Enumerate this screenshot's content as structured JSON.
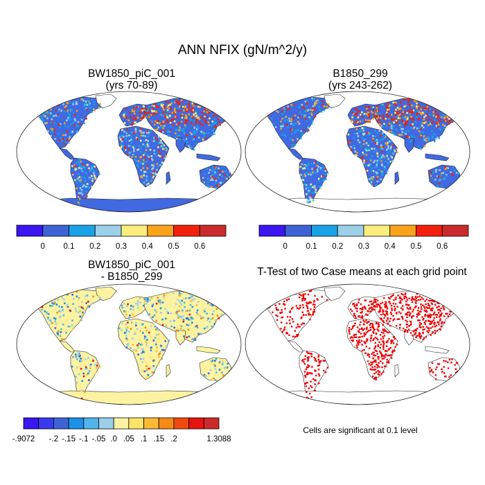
{
  "figure": {
    "title": "ANN NFIX (gN/m^2/y)"
  },
  "panels": [
    {
      "title": "BW1850_piC_001",
      "subtitle": "(yrs 70-89)"
    },
    {
      "title": "B1850_299",
      "subtitle": "(yrs 243-262)"
    },
    {
      "title": "BW1850_piC_001",
      "subtitle": "- B1850_299"
    },
    {
      "title": "T-Test of two Case means at each grid point",
      "subtitle": ""
    }
  ],
  "colorbar_top": {
    "colors": [
      "#3b16f0",
      "#3e63d6",
      "#1aa2e6",
      "#9ccfe8",
      "#fbee7e",
      "#f9a21a",
      "#f2200c",
      "#cc2b2b"
    ],
    "labels": [
      "0",
      "0.1",
      "0.2",
      "0.3",
      "0.4",
      "0.5",
      "0.6"
    ]
  },
  "colorbar_diff": {
    "colors": [
      "#3b16f0",
      "#3a39f0",
      "#3e63d6",
      "#1c8fe8",
      "#4fb5ea",
      "#9ccfe8",
      "#fbf3a2",
      "#fbe46a",
      "#f9b934",
      "#f58a16",
      "#f04a10",
      "#e8140e",
      "#cc2b2b"
    ],
    "labels": [
      "-.9072",
      "-.2",
      "-.15",
      "-.1",
      "-.05",
      ".0",
      ".05",
      ".1",
      ".15",
      ".2",
      "1.3088"
    ]
  },
  "significance_note": "Cells are significant at 0.1 level"
}
